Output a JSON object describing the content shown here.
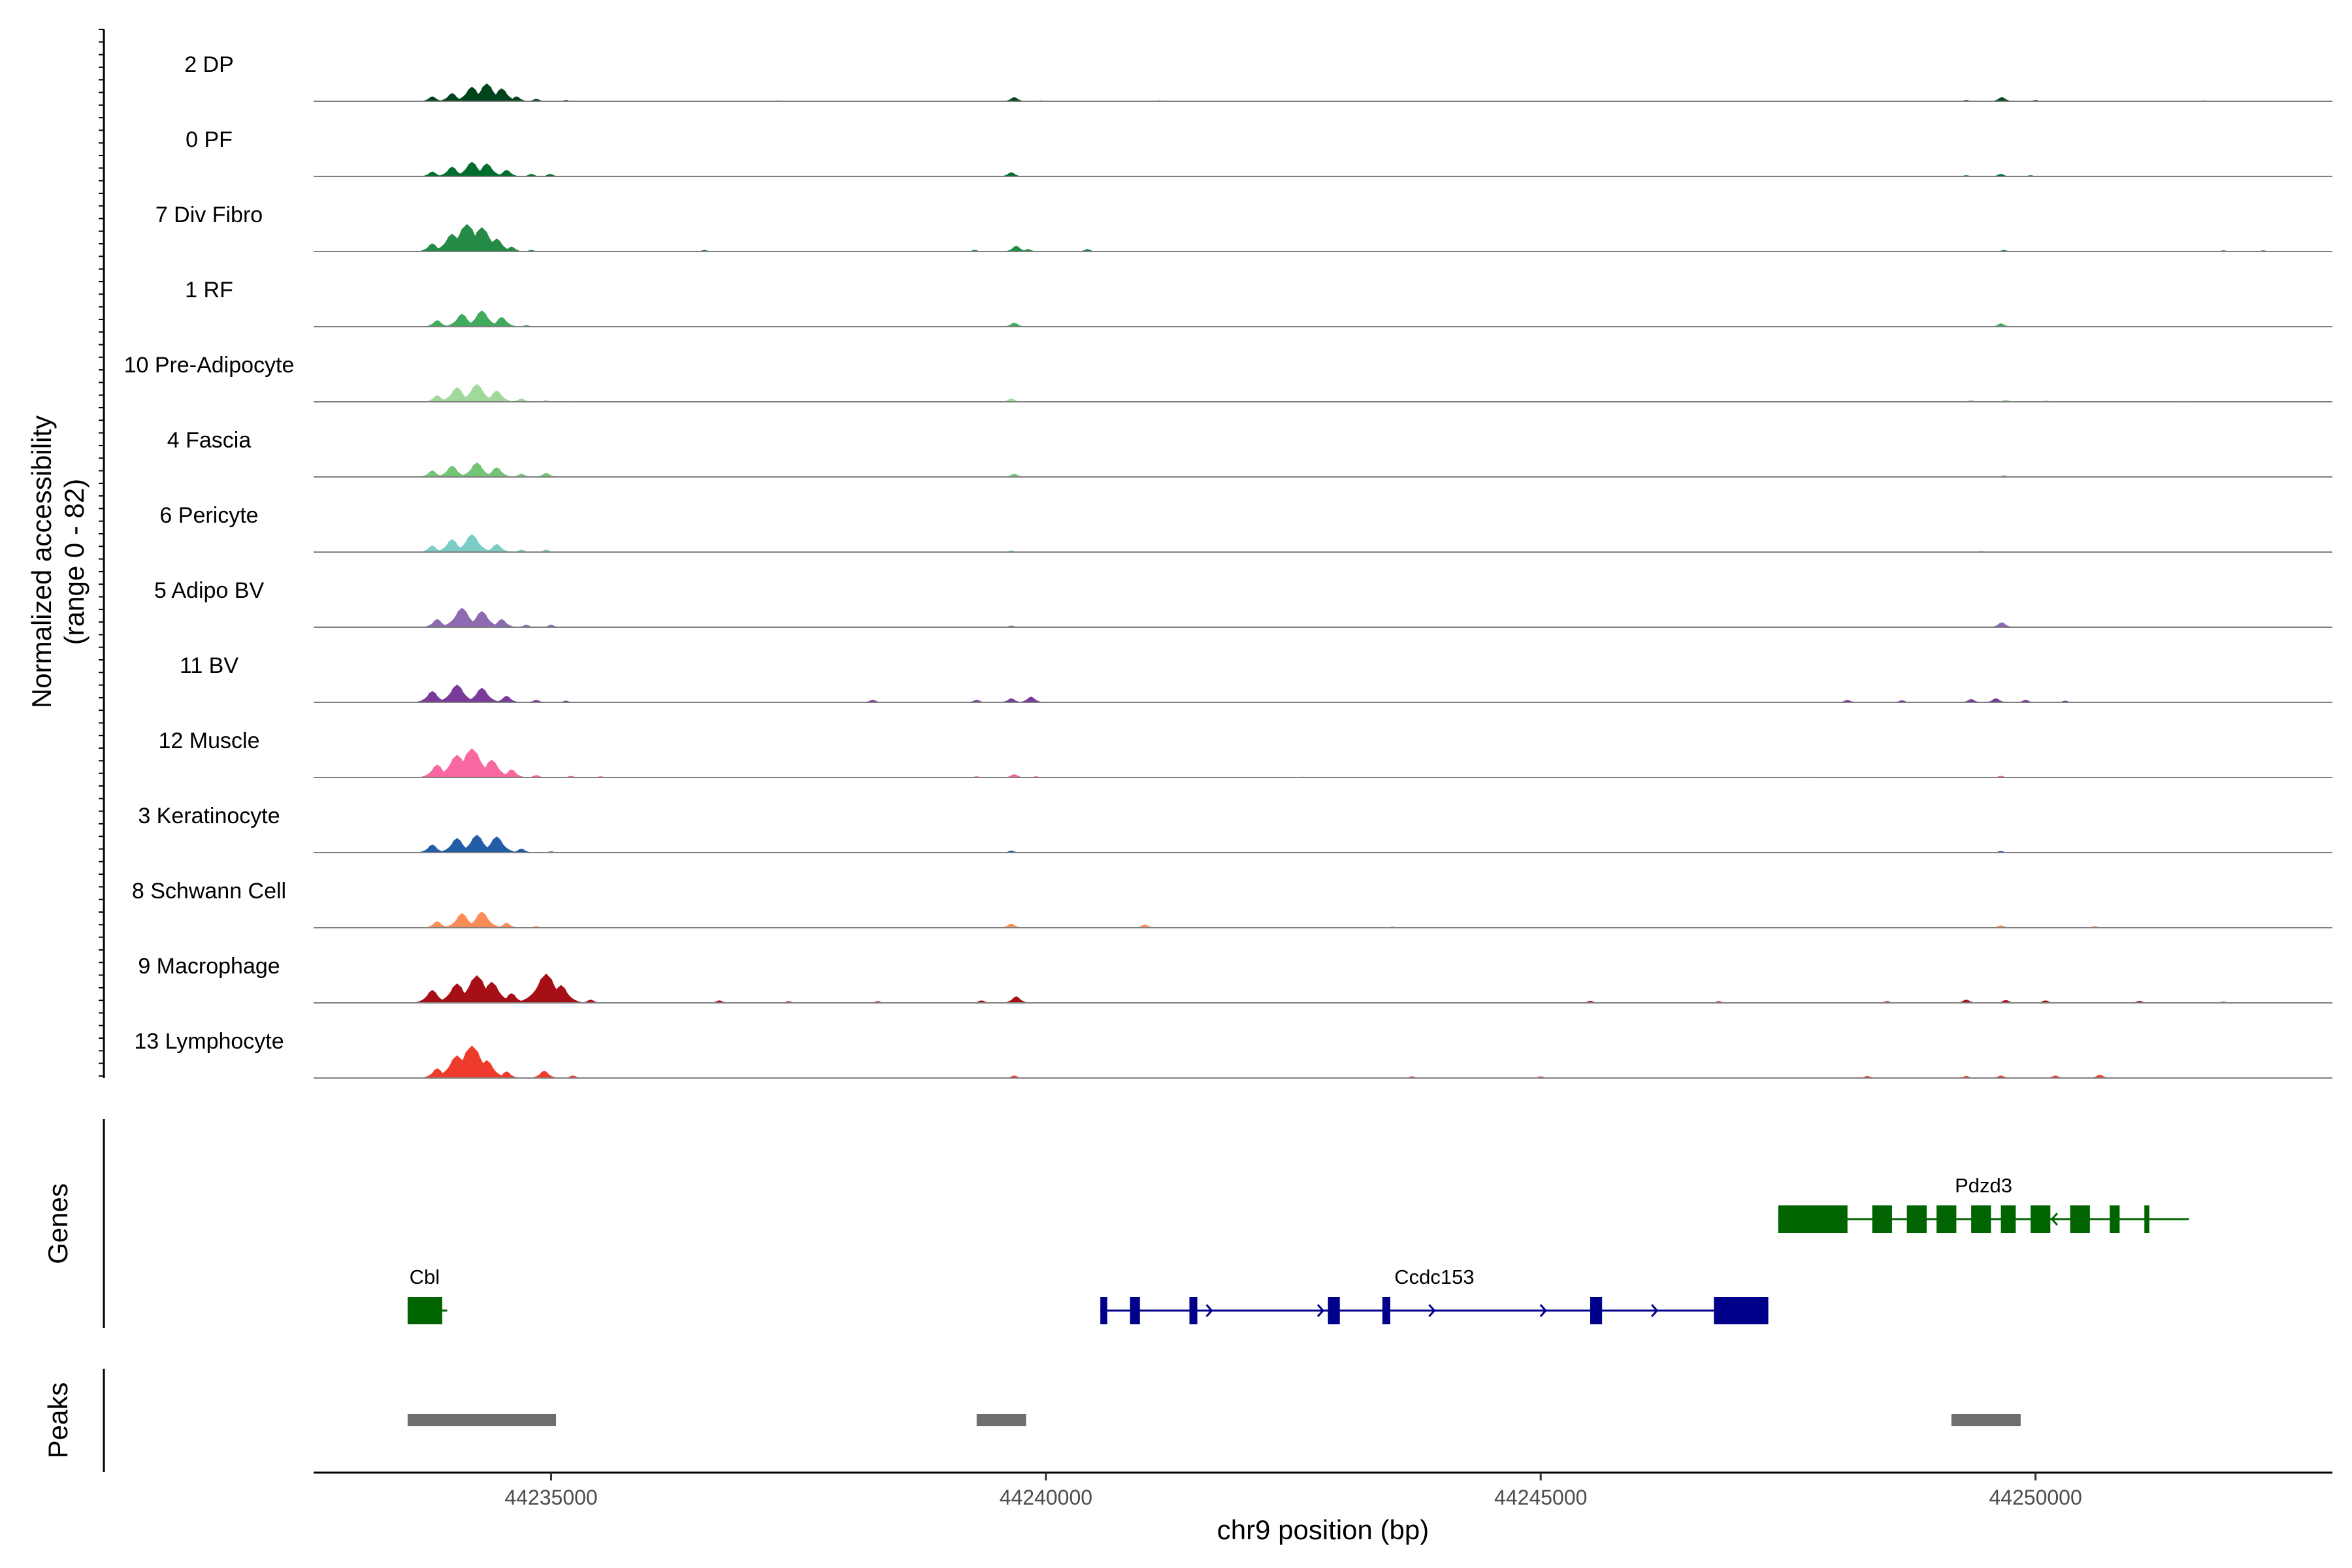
{
  "chart_data": {
    "type": "area",
    "chromosome": "chr9",
    "xlabel": "chr9 position (bp)",
    "ylabel_line1": "Normalized accessibility",
    "ylabel_line2": "(range 0 - 82)",
    "y_range": [
      0,
      82
    ],
    "xlim": [
      44232600,
      44253000
    ],
    "x_ticks": [
      44235000,
      44240000,
      44245000,
      44250000
    ],
    "x_tick_labels": [
      "44235000",
      "44240000",
      "44245000",
      "44250000"
    ],
    "tracks": [
      {
        "name": "2 DP",
        "color": "#00441b",
        "peaks": [
          [
            44233800,
            6
          ],
          [
            44234000,
            10
          ],
          [
            44234200,
            18
          ],
          [
            44234350,
            22
          ],
          [
            44234500,
            16
          ],
          [
            44234650,
            6
          ],
          [
            44234850,
            3
          ],
          [
            44235150,
            1.5
          ],
          [
            44237300,
            1
          ],
          [
            44239680,
            5
          ],
          [
            44239950,
            1
          ],
          [
            44241150,
            1
          ],
          [
            44249300,
            1.5
          ],
          [
            44249660,
            5
          ],
          [
            44250000,
            1.5
          ],
          [
            44251700,
            1
          ]
        ]
      },
      {
        "name": "0 PF",
        "color": "#006d2c",
        "peaks": [
          [
            44233800,
            6
          ],
          [
            44234000,
            12
          ],
          [
            44234200,
            18
          ],
          [
            44234350,
            16
          ],
          [
            44234550,
            8
          ],
          [
            44234800,
            3
          ],
          [
            44234990,
            3
          ],
          [
            44239650,
            5
          ],
          [
            44249300,
            1.5
          ],
          [
            44249650,
            3
          ],
          [
            44249950,
            1.5
          ]
        ]
      },
      {
        "name": "7 Div Fibro",
        "color": "#238b45",
        "peaks": [
          [
            44233800,
            10
          ],
          [
            44234000,
            22
          ],
          [
            44234150,
            34
          ],
          [
            44234300,
            30
          ],
          [
            44234450,
            16
          ],
          [
            44234600,
            6
          ],
          [
            44234800,
            2
          ],
          [
            44236550,
            2
          ],
          [
            44239280,
            2
          ],
          [
            44239700,
            7
          ],
          [
            44239820,
            3
          ],
          [
            44240420,
            3
          ],
          [
            44249680,
            2
          ],
          [
            44251900,
            1.5
          ],
          [
            44252300,
            1.5
          ]
        ]
      },
      {
        "name": "1 RF",
        "color": "#41ab5d",
        "peaks": [
          [
            44233850,
            8
          ],
          [
            44234100,
            16
          ],
          [
            44234300,
            20
          ],
          [
            44234500,
            12
          ],
          [
            44234750,
            2
          ],
          [
            44239680,
            5
          ],
          [
            44249650,
            4
          ]
        ]
      },
      {
        "name": "10 Pre-Adipocyte",
        "color": "#a1d99b",
        "peaks": [
          [
            44233850,
            8
          ],
          [
            44234050,
            18
          ],
          [
            44234250,
            22
          ],
          [
            44234450,
            14
          ],
          [
            44234700,
            4
          ],
          [
            44234950,
            2
          ],
          [
            44235200,
            1
          ],
          [
            44239650,
            4
          ],
          [
            44249350,
            2
          ],
          [
            44249700,
            2.5
          ],
          [
            44250100,
            1.5
          ],
          [
            44251500,
            1
          ]
        ]
      },
      {
        "name": "4 Fascia",
        "color": "#74c476",
        "peaks": [
          [
            44233800,
            8
          ],
          [
            44234000,
            14
          ],
          [
            44234250,
            18
          ],
          [
            44234450,
            12
          ],
          [
            44234700,
            4
          ],
          [
            44234950,
            5
          ],
          [
            44239680,
            4
          ],
          [
            44249680,
            2
          ]
        ]
      },
      {
        "name": "6 Pericyte",
        "color": "#7bccc4",
        "peaks": [
          [
            44233800,
            8
          ],
          [
            44234000,
            16
          ],
          [
            44234200,
            22
          ],
          [
            44234450,
            10
          ],
          [
            44234700,
            3
          ],
          [
            44234950,
            3
          ],
          [
            44239650,
            2
          ],
          [
            44249450,
            1.5
          ]
        ]
      },
      {
        "name": "5 Adipo BV",
        "color": "#8c6bb1",
        "peaks": [
          [
            44233850,
            10
          ],
          [
            44234100,
            24
          ],
          [
            44234300,
            20
          ],
          [
            44234500,
            10
          ],
          [
            44234750,
            3
          ],
          [
            44235000,
            3
          ],
          [
            44239650,
            2
          ],
          [
            44249660,
            6
          ]
        ]
      },
      {
        "name": "11 BV",
        "color": "#7a3a9a",
        "peaks": [
          [
            44233800,
            14
          ],
          [
            44234050,
            22
          ],
          [
            44234300,
            18
          ],
          [
            44234550,
            8
          ],
          [
            44234850,
            3
          ],
          [
            44235150,
            2
          ],
          [
            44238250,
            3
          ],
          [
            44239300,
            3
          ],
          [
            44239650,
            5
          ],
          [
            44239850,
            7
          ],
          [
            44248100,
            3
          ],
          [
            44248650,
            2.5
          ],
          [
            44249350,
            4
          ],
          [
            44249600,
            5
          ],
          [
            44249900,
            3
          ],
          [
            44250300,
            2
          ]
        ]
      },
      {
        "name": "12 Muscle",
        "color": "#f768a1",
        "peaks": [
          [
            44233850,
            16
          ],
          [
            44234050,
            28
          ],
          [
            44234200,
            36
          ],
          [
            44234400,
            22
          ],
          [
            44234600,
            10
          ],
          [
            44234850,
            3
          ],
          [
            44235200,
            2
          ],
          [
            44235500,
            1.5
          ],
          [
            44239300,
            1.5
          ],
          [
            44239680,
            4
          ],
          [
            44239900,
            1.5
          ],
          [
            44242600,
            1
          ],
          [
            44247700,
            1
          ],
          [
            44249650,
            2
          ]
        ]
      },
      {
        "name": "3 Keratinocyte",
        "color": "#225ea8",
        "peaks": [
          [
            44233800,
            10
          ],
          [
            44234050,
            18
          ],
          [
            44234250,
            22
          ],
          [
            44234450,
            20
          ],
          [
            44234700,
            5
          ],
          [
            44235000,
            1.5
          ],
          [
            44239650,
            2.5
          ],
          [
            44241100,
            1
          ],
          [
            44249650,
            2
          ]
        ]
      },
      {
        "name": "8 Schwann Cell",
        "color": "#fc8d59",
        "peaks": [
          [
            44233850,
            8
          ],
          [
            44234100,
            18
          ],
          [
            44234300,
            20
          ],
          [
            44234550,
            6
          ],
          [
            44234850,
            2
          ],
          [
            44239650,
            5
          ],
          [
            44241000,
            4
          ],
          [
            44243500,
            1.5
          ],
          [
            44249650,
            3
          ],
          [
            44250600,
            2
          ]
        ]
      },
      {
        "name": "9 Macrophage",
        "color": "#a50f15",
        "peaks": [
          [
            44233800,
            16
          ],
          [
            44234050,
            24
          ],
          [
            44234250,
            34
          ],
          [
            44234400,
            26
          ],
          [
            44234600,
            12
          ],
          [
            44234950,
            36
          ],
          [
            44235100,
            22
          ],
          [
            44235400,
            4
          ],
          [
            44236700,
            3
          ],
          [
            44237400,
            2
          ],
          [
            44238300,
            2
          ],
          [
            44239350,
            3
          ],
          [
            44239700,
            8
          ],
          [
            44245500,
            2.5
          ],
          [
            44246800,
            2
          ],
          [
            44248500,
            2
          ],
          [
            44249300,
            4
          ],
          [
            44249700,
            3.5
          ],
          [
            44250100,
            3
          ],
          [
            44251050,
            2.5
          ],
          [
            44251900,
            1.5
          ]
        ]
      },
      {
        "name": "13 Lymphocyte",
        "color": "#ef3b2c",
        "peaks": [
          [
            44233850,
            12
          ],
          [
            44234050,
            28
          ],
          [
            44234200,
            40
          ],
          [
            44234350,
            22
          ],
          [
            44234550,
            8
          ],
          [
            44234930,
            9
          ],
          [
            44235220,
            3
          ],
          [
            44239680,
            3
          ],
          [
            44243700,
            2
          ],
          [
            44245000,
            2
          ],
          [
            44248300,
            2.5
          ],
          [
            44249300,
            2.5
          ],
          [
            44249650,
            3
          ],
          [
            44250200,
            3
          ],
          [
            44250650,
            4
          ]
        ]
      }
    ],
    "gene_track_label": "Genes",
    "peaks_track_label": "Peaks",
    "genes": [
      {
        "name": "Pdzd3",
        "color": "#006400",
        "strand": "-",
        "row": 0,
        "start": 44247400,
        "end": 44251550,
        "exons": [
          [
            44247400,
            44248100
          ],
          [
            44248350,
            44248550
          ],
          [
            44248700,
            44248900
          ],
          [
            44249000,
            44249200
          ],
          [
            44249350,
            44249550
          ],
          [
            44249650,
            44249800
          ],
          [
            44249950,
            44250150
          ],
          [
            44250350,
            44250550
          ],
          [
            44250750,
            44250850
          ],
          [
            44251100,
            44251150
          ]
        ]
      },
      {
        "name": "Cbl",
        "color": "#006400",
        "strand": "-",
        "row": 1,
        "start": 44233550,
        "end": 44233950,
        "exons": [
          [
            44233550,
            44233900
          ]
        ]
      },
      {
        "name": "Ccdc153",
        "color": "#00008b",
        "strand": "+",
        "row": 1,
        "start": 44240550,
        "end": 44247300,
        "exons": [
          [
            44240550,
            44240620
          ],
          [
            44240850,
            44240950
          ],
          [
            44241450,
            44241530
          ],
          [
            44242850,
            44242970
          ],
          [
            44243400,
            44243480
          ],
          [
            44245500,
            44245620
          ],
          [
            44246750,
            44247300
          ]
        ]
      }
    ],
    "peak_regions": [
      [
        44233550,
        44235050
      ],
      [
        44239300,
        44239800
      ],
      [
        44249150,
        44249850
      ]
    ]
  }
}
